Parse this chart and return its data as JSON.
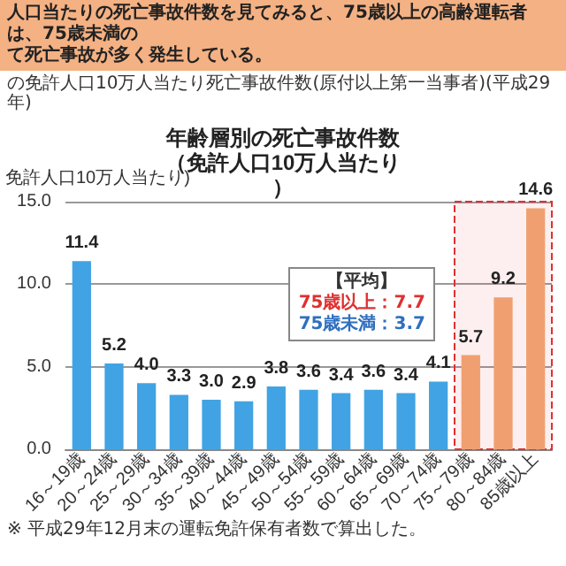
{
  "chart_data": {
    "type": "bar",
    "title": "年齢層別の死亡事故件数（免許人口10万人当たり）",
    "subtitle": "の免許人口10万人当たり死亡事故件数(原付以上第一当事者)(平成29年)",
    "ylabel": "免許人口10万人当たり)",
    "annotations": [
      "人口当たりの死亡事故件数を見てみると、75歳以上の高齢運転者は、75歳未満の",
      "て死亡事故が多く発生している。",
      "【平均】",
      "75歳以上：7.7",
      "75歳未満：3.7",
      "※ 平成29年12月末の運転免許保有者数で算出した。"
    ],
    "categories": [
      "16～19歳",
      "20～24歳",
      "25～29歳",
      "30～34歳",
      "35～39歳",
      "40～44歳",
      "45～49歳",
      "50～54歳",
      "55～59歳",
      "60～64歳",
      "65～69歳",
      "70～74歳",
      "75～79歳",
      "80～84歳",
      "85歳以上"
    ],
    "values": [
      11.4,
      5.2,
      4.0,
      3.3,
      3.0,
      2.9,
      3.8,
      3.6,
      3.4,
      3.6,
      3.4,
      4.1,
      5.7,
      9.2,
      14.6
    ],
    "colors": [
      "#41a3e3",
      "#41a3e3",
      "#41a3e3",
      "#41a3e3",
      "#41a3e3",
      "#41a3e3",
      "#41a3e3",
      "#41a3e3",
      "#41a3e3",
      "#41a3e3",
      "#41a3e3",
      "#41a3e3",
      "#f0a070",
      "#f0a070",
      "#f0a070"
    ],
    "bands": [
      {
        "axis": "x",
        "from": "75～79歳",
        "to": "85歳以上",
        "color": "#e03030"
      }
    ],
    "ylim": [
      0,
      15
    ],
    "yticks": [
      {
        "value": 0,
        "label": "0.0"
      },
      {
        "value": 5,
        "label": "5.0"
      },
      {
        "value": 10,
        "label": "10.0"
      },
      {
        "value": 15,
        "label": "15.0"
      }
    ],
    "value_labels": [
      "11.4",
      "5.2",
      "4.0",
      "3.3",
      "3.0",
      "2.9",
      "3.8",
      "3.6",
      "3.4",
      "3.6",
      "3.4",
      "4.1",
      "5.7",
      "9.2",
      "14.6"
    ],
    "grid": "y"
  }
}
